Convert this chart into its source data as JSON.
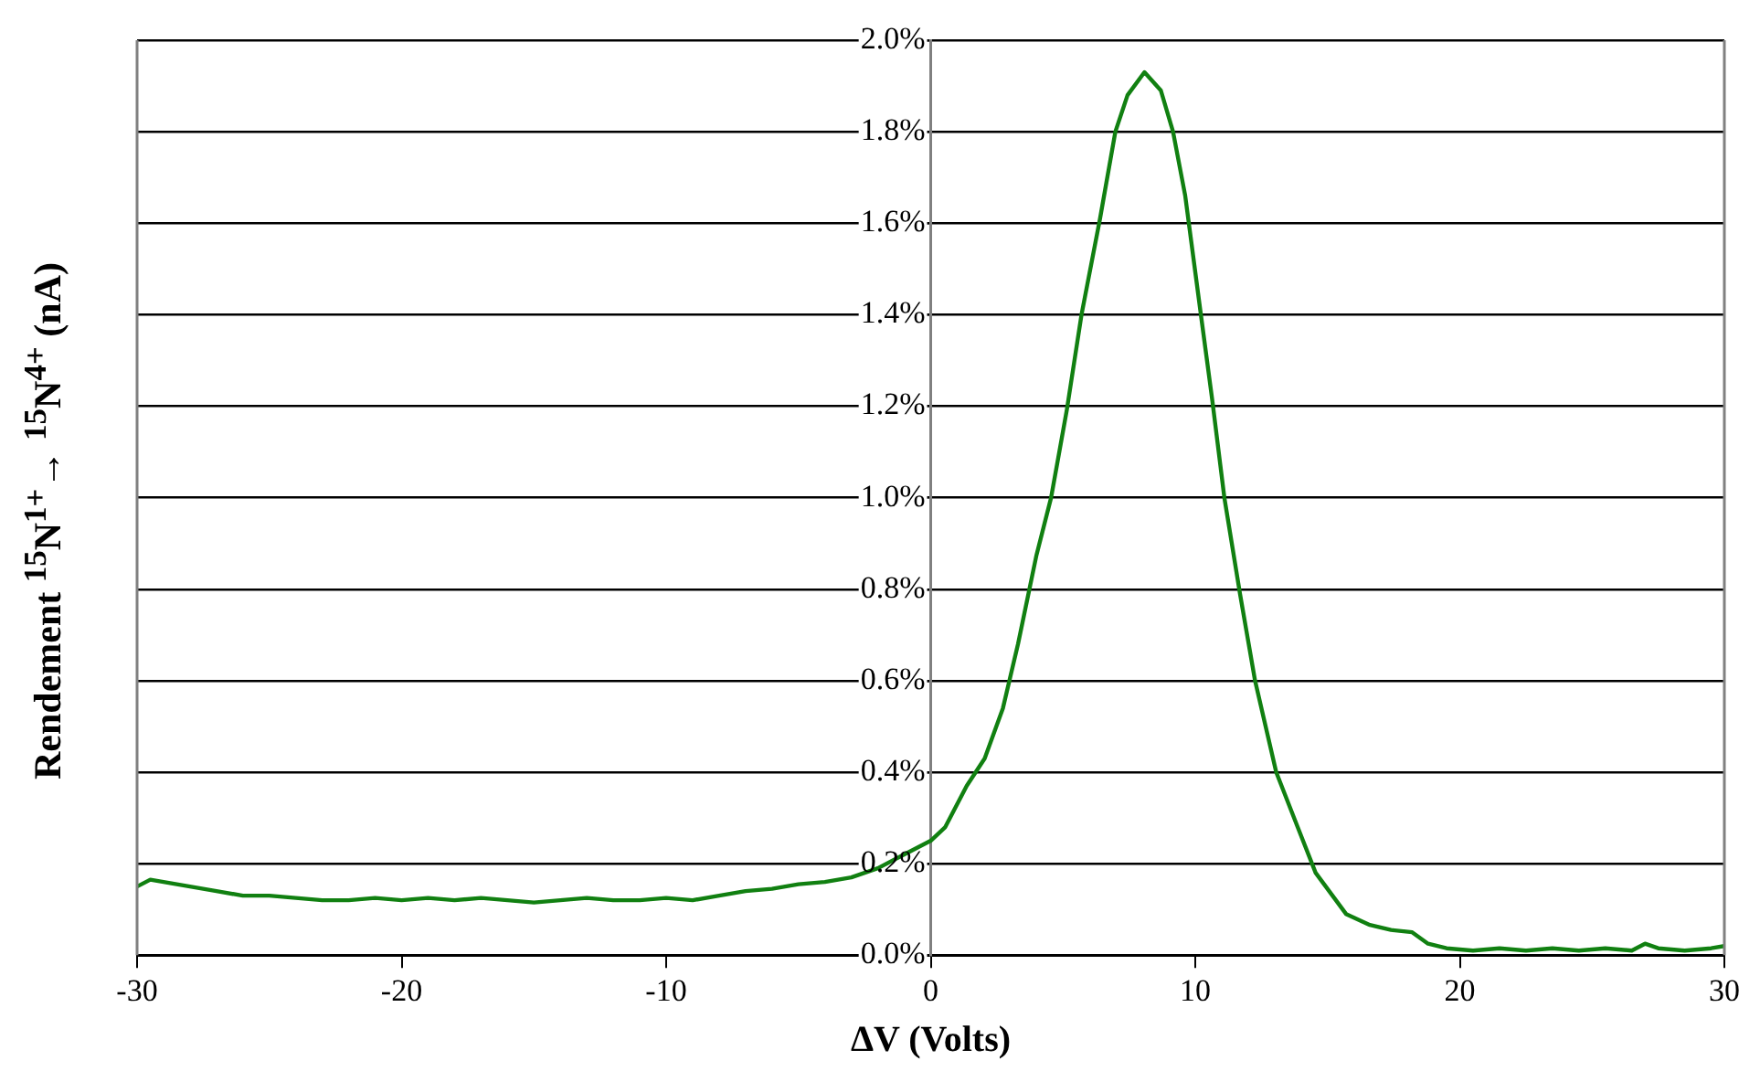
{
  "chart_data": {
    "type": "line",
    "xlabel": "ΔV (Volts)",
    "ylabel": "Rendement $^{15}$N$^{1+}$→ $^{15}$N$^{4+}$ (nA)",
    "x": [
      -30,
      -29.5,
      -29,
      -28,
      -27,
      -26,
      -25,
      -24,
      -23,
      -22,
      -21,
      -20,
      -19,
      -18,
      -17,
      -16,
      -15,
      -14,
      -13,
      -12,
      -11,
      -10,
      -9,
      -8,
      -7,
      -6,
      -5,
      -4,
      -3,
      -2,
      -1,
      0,
      0.55,
      1.36,
      2.04,
      2.73,
      3.3,
      4.0,
      4.55,
      5.14,
      5.7,
      6.4,
      6.98,
      7.44,
      8.08,
      8.7,
      9.16,
      9.62,
      10.19,
      10.65,
      11.1,
      11.69,
      12.26,
      13.06,
      13.87,
      14.55,
      15.7,
      16.6,
      17.4,
      18.2,
      18.8,
      19.5,
      20.5,
      21.5,
      22.5,
      23.5,
      24.5,
      25.5,
      26.5,
      27,
      27.5,
      28.5,
      29.5,
      30
    ],
    "series": [
      {
        "color": "#118011",
        "values": [
          0.15,
          0.165,
          0.16,
          0.15,
          0.14,
          0.13,
          0.13,
          0.125,
          0.12,
          0.12,
          0.125,
          0.12,
          0.125,
          0.12,
          0.125,
          0.12,
          0.115,
          0.12,
          0.125,
          0.12,
          0.12,
          0.125,
          0.12,
          0.13,
          0.14,
          0.145,
          0.155,
          0.16,
          0.17,
          0.19,
          0.22,
          0.25,
          0.28,
          0.37,
          0.43,
          0.54,
          0.68,
          0.875,
          1.0,
          1.19,
          1.4,
          1.61,
          1.8,
          1.88,
          1.93,
          1.89,
          1.8,
          1.66,
          1.41,
          1.21,
          1.0,
          0.79,
          0.6,
          0.4,
          0.28,
          0.18,
          0.09,
          0.066,
          0.055,
          0.05,
          0.025,
          0.015,
          0.01,
          0.015,
          0.01,
          0.015,
          0.01,
          0.015,
          0.01,
          0.025,
          0.015,
          0.01,
          0.015,
          0.02
        ]
      }
    ],
    "xlim": [
      -30,
      30
    ],
    "xticks": [
      -30,
      -20,
      -10,
      0,
      10,
      20,
      30
    ],
    "ylim": [
      0,
      2
    ],
    "yticks": [
      {
        "value": 0,
        "label": "0.0%"
      },
      {
        "value": 0.2,
        "label": "0.2%"
      },
      {
        "value": 0.4,
        "label": "0.4%"
      },
      {
        "value": 0.6,
        "label": "0.6%"
      },
      {
        "value": 0.8,
        "label": "0.8%"
      },
      {
        "value": 1.0,
        "label": "1.0%"
      },
      {
        "value": 1.2,
        "label": "1.2%"
      },
      {
        "value": 1.4,
        "label": "1.4%"
      },
      {
        "value": 1.6,
        "label": "1.6%"
      },
      {
        "value": 1.8,
        "label": "1.8%"
      },
      {
        "value": 2.0,
        "label": "2.0%"
      }
    ],
    "grid": "y",
    "legend": false,
    "marker": "none",
    "line_style": "solid"
  }
}
